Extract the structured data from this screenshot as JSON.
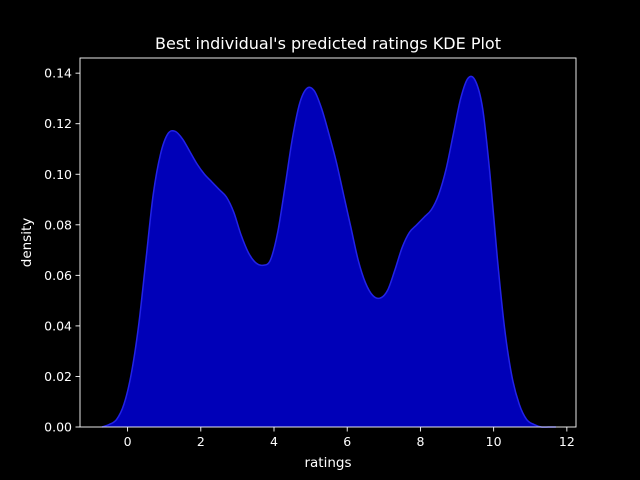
{
  "chart_data": {
    "type": "area",
    "title": "Best individual's predicted ratings KDE Plot",
    "xlabel": "ratings",
    "ylabel": "density",
    "xlim": [
      -1.3,
      12.25
    ],
    "ylim": [
      0,
      0.146
    ],
    "xticks": [
      0,
      2,
      4,
      6,
      8,
      10,
      12
    ],
    "yticks": [
      "0.00",
      "0.02",
      "0.04",
      "0.06",
      "0.08",
      "0.10",
      "0.12",
      "0.14"
    ],
    "grid": false,
    "legend": "none",
    "fill_color": "#0000b8",
    "line_color": "#2222e8",
    "background_color": "#000000",
    "foreground_color": "#ffffff",
    "series": [
      {
        "x": [
          -0.7,
          -0.5,
          -0.3,
          -0.1,
          0.1,
          0.3,
          0.5,
          0.7,
          0.9,
          1.1,
          1.3,
          1.5,
          1.7,
          1.9,
          2.1,
          2.3,
          2.5,
          2.7,
          2.9,
          3.1,
          3.3,
          3.5,
          3.7,
          3.9,
          4.1,
          4.3,
          4.5,
          4.7,
          4.9,
          5.1,
          5.3,
          5.5,
          5.7,
          5.9,
          6.1,
          6.3,
          6.5,
          6.7,
          6.9,
          7.1,
          7.3,
          7.5,
          7.7,
          7.9,
          8.1,
          8.3,
          8.5,
          8.7,
          8.9,
          9.1,
          9.3,
          9.5,
          9.7,
          9.9,
          10.1,
          10.3,
          10.5,
          10.7,
          10.9,
          11.1,
          11.3,
          11.5,
          11.7
        ],
        "y": [
          0.0,
          0.001,
          0.003,
          0.009,
          0.021,
          0.04,
          0.066,
          0.092,
          0.108,
          0.116,
          0.117,
          0.114,
          0.109,
          0.104,
          0.1,
          0.097,
          0.094,
          0.091,
          0.085,
          0.076,
          0.069,
          0.065,
          0.064,
          0.066,
          0.077,
          0.095,
          0.114,
          0.128,
          0.134,
          0.133,
          0.126,
          0.116,
          0.105,
          0.092,
          0.079,
          0.066,
          0.057,
          0.052,
          0.051,
          0.054,
          0.062,
          0.071,
          0.077,
          0.08,
          0.083,
          0.086,
          0.092,
          0.102,
          0.116,
          0.13,
          0.138,
          0.137,
          0.126,
          0.1,
          0.067,
          0.039,
          0.02,
          0.009,
          0.003,
          0.001,
          0.0,
          0.0,
          0.0
        ]
      }
    ]
  }
}
